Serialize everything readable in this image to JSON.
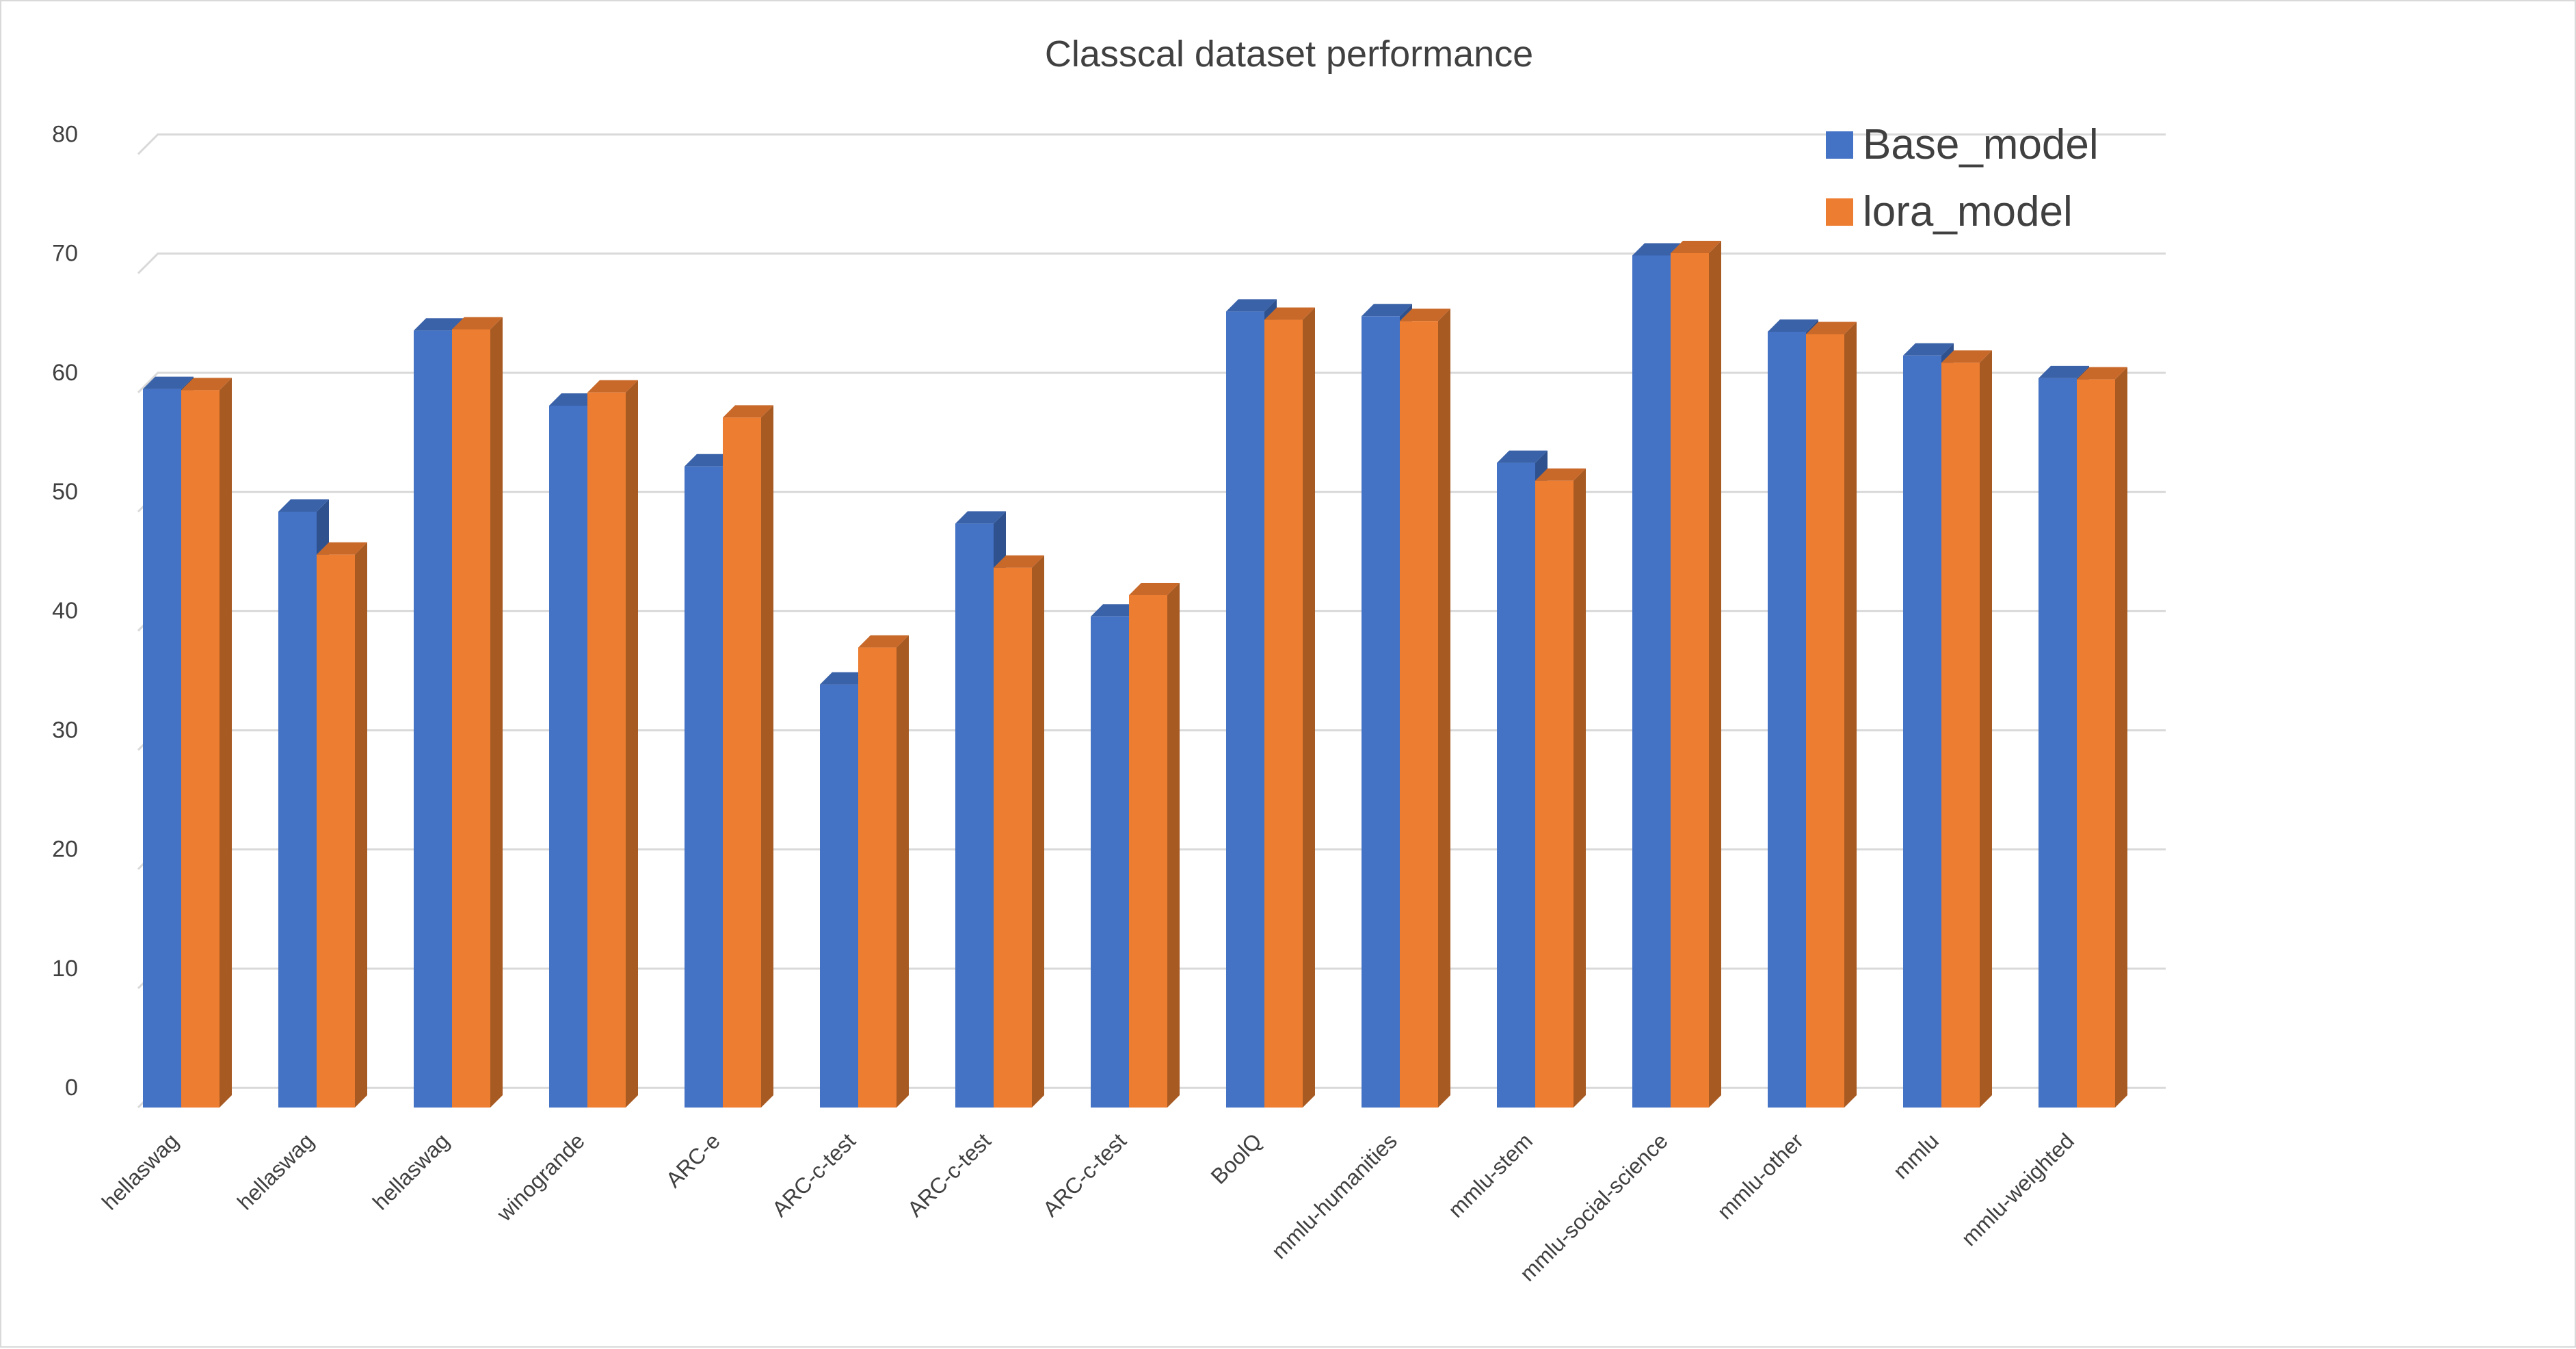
{
  "chart_data": {
    "type": "bar",
    "title": "Classcal dataset performance",
    "xlabel": "",
    "ylabel": "",
    "ylim": [
      0,
      80
    ],
    "yticks": [
      0,
      10,
      20,
      30,
      40,
      50,
      60,
      70,
      80
    ],
    "grid": true,
    "legend_position": "top-right",
    "categories": [
      "hellaswag",
      "hellaswag",
      "hellaswag",
      "winogrande",
      "ARC-e",
      "ARC-c-test",
      "ARC-c-test",
      "ARC-c-test",
      "BoolQ",
      "mmlu-humanities",
      "mmlu-stem",
      "mmlu-social-science",
      "mmlu-other",
      "mmlu",
      "mmlu-weighted"
    ],
    "series": [
      {
        "name": "Base_model",
        "color": "#4472C4",
        "side_color": "#2F528F",
        "top_color": "#3A62A8",
        "values": [
          60.3,
          50.0,
          65.2,
          58.9,
          53.8,
          35.5,
          49.0,
          41.2,
          66.8,
          66.4,
          54.1,
          71.5,
          65.1,
          63.1,
          61.2
        ]
      },
      {
        "name": "lora_model",
        "color": "#ED7D31",
        "side_color": "#A85A23",
        "top_color": "#C8692A",
        "values": [
          60.2,
          46.4,
          65.3,
          60.0,
          57.9,
          38.6,
          45.3,
          43.0,
          66.1,
          66.0,
          52.6,
          71.7,
          64.9,
          62.5,
          61.1
        ]
      }
    ]
  }
}
